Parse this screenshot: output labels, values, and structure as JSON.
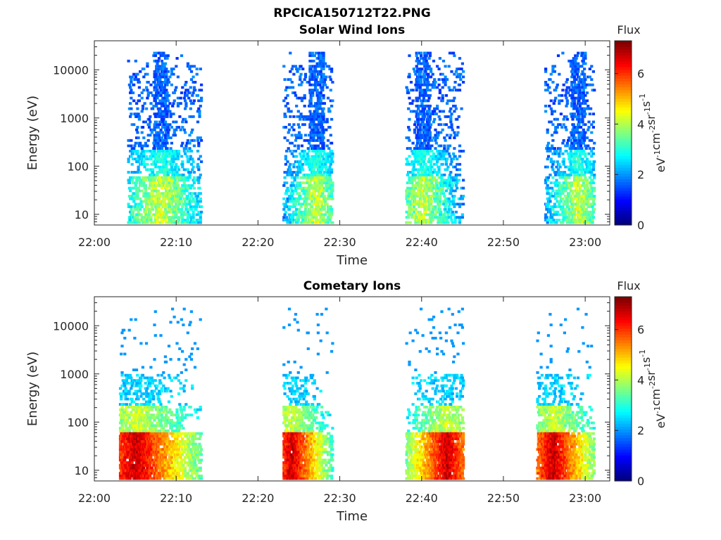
{
  "figure": {
    "title": "RPCICA150712T22.PNG"
  },
  "colors": {
    "colormap": "jet",
    "axes": "#262626",
    "background": "#ffffff"
  },
  "chart_data": [
    {
      "type": "heatmap",
      "title": "Solar Wind Ions",
      "xlabel": "Time",
      "ylabel": "Energy (eV)",
      "y_scale": "log",
      "ylim": [
        6,
        40000
      ],
      "xlim": [
        "22:00",
        "23:03"
      ],
      "x_ticks": [
        "22:00",
        "22:10",
        "22:20",
        "22:30",
        "22:40",
        "22:50",
        "23:00"
      ],
      "y_ticks": [
        10,
        100,
        1000,
        10000
      ],
      "y_tick_labels": [
        "10",
        "100",
        "1000",
        "10000"
      ],
      "colorbar": {
        "label": "Flux",
        "unit": "eV-1cm-2sr-1s-1",
        "range": [
          0,
          7.3
        ],
        "ticks": [
          0,
          2,
          4,
          6
        ],
        "tick_labels": [
          "0",
          "2",
          "4",
          "6"
        ]
      },
      "bursts": [
        {
          "start": "22:04",
          "peak": "22:08",
          "end": "22:13"
        },
        {
          "start": "22:23",
          "peak": "22:27",
          "end": "22:29"
        },
        {
          "start": "22:38",
          "peak": "22:40",
          "end": "22:45"
        },
        {
          "start": "22:55",
          "peak": "22:59",
          "end": "23:01"
        }
      ]
    },
    {
      "type": "heatmap",
      "title": "Cometary Ions",
      "xlabel": "Time",
      "ylabel": "Energy (eV)",
      "y_scale": "log",
      "ylim": [
        6,
        40000
      ],
      "xlim": [
        "22:00",
        "23:03"
      ],
      "x_ticks": [
        "22:00",
        "22:10",
        "22:20",
        "22:30",
        "22:40",
        "22:50",
        "23:00"
      ],
      "y_ticks": [
        10,
        100,
        1000,
        10000
      ],
      "y_tick_labels": [
        "10",
        "100",
        "1000",
        "10000"
      ],
      "colorbar": {
        "label": "Flux",
        "unit": "eV-1cm-2sr-1s-1",
        "range": [
          0,
          7.3
        ],
        "ticks": [
          0,
          2,
          4,
          6
        ],
        "tick_labels": [
          "0",
          "2",
          "4",
          "6"
        ]
      },
      "bursts": [
        {
          "start": "22:03",
          "peak": "22:05",
          "end": "22:13"
        },
        {
          "start": "22:23",
          "peak": "22:24",
          "end": "22:29"
        },
        {
          "start": "22:38",
          "peak": "22:43",
          "end": "22:45"
        },
        {
          "start": "22:54",
          "peak": "22:56",
          "end": "23:01"
        }
      ]
    }
  ]
}
